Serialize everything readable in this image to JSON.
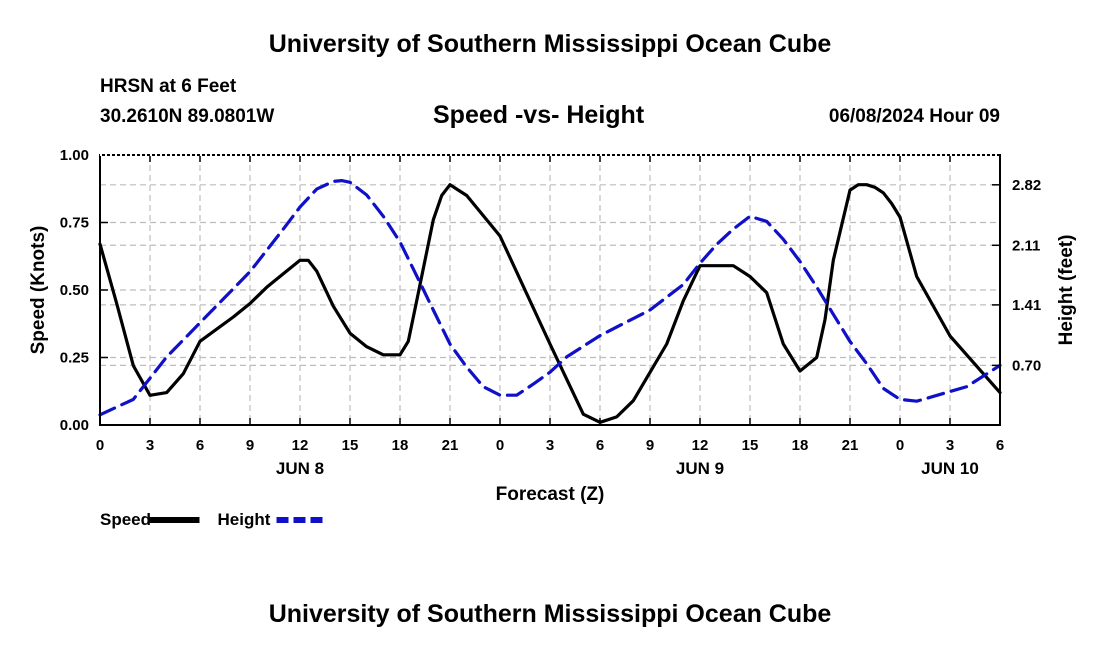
{
  "header": {
    "title": "University of Southern Mississippi Ocean Cube",
    "station": "HRSN at 6 Feet",
    "coords": "30.2610N  89.0801W",
    "chart_title": "Speed -vs- Height",
    "datetime": "06/08/2024 Hour 09"
  },
  "footer": {
    "title": "University of Southern Mississippi Ocean Cube"
  },
  "legend": [
    {
      "label": "Speed",
      "color": "#000000",
      "dash": "solid"
    },
    {
      "label": "Height",
      "color": "#1010c8",
      "dash": "dashed"
    }
  ],
  "chart_data": {
    "type": "line",
    "title": "Speed -vs- Height",
    "xlabel": "Forecast (Z)",
    "ylabel": "Speed (Knots)",
    "y2label": "Height (feet)",
    "x_range": [
      0,
      54
    ],
    "x_tick_labels": [
      "0",
      "3",
      "6",
      "9",
      "12",
      "15",
      "18",
      "21",
      "0",
      "3",
      "6",
      "9",
      "12",
      "15",
      "18",
      "21",
      "0",
      "3",
      "6"
    ],
    "day_labels": [
      {
        "label": "JUN 8",
        "x": 12
      },
      {
        "label": "JUN 9",
        "x": 36
      },
      {
        "label": "JUN 10",
        "x": 51
      }
    ],
    "y_range": [
      0,
      1.0
    ],
    "y_ticks": [
      "0.00",
      "0.25",
      "0.50",
      "0.75",
      "1.00"
    ],
    "y2_range": [
      0,
      3.17
    ],
    "y2_ticks": [
      "0.70",
      "1.41",
      "2.11",
      "2.82"
    ],
    "grid": true,
    "series": [
      {
        "name": "Speed",
        "axis": "left",
        "x": [
          0,
          1,
          2,
          3,
          4,
          5,
          6,
          8,
          9,
          10,
          11,
          12,
          12.5,
          13,
          14,
          15,
          16,
          17,
          18,
          18.5,
          19,
          20,
          20.5,
          21,
          21.5,
          22,
          24,
          27,
          29,
          30,
          31,
          32,
          34,
          35,
          36,
          38,
          39,
          40,
          41,
          42,
          43,
          43.5,
          44,
          45,
          45.5,
          46,
          46.5,
          47,
          47.5,
          48,
          49,
          51,
          53,
          54
        ],
        "y": [
          0.67,
          0.45,
          0.22,
          0.11,
          0.12,
          0.19,
          0.31,
          0.4,
          0.45,
          0.51,
          0.56,
          0.61,
          0.61,
          0.57,
          0.44,
          0.34,
          0.29,
          0.26,
          0.26,
          0.31,
          0.46,
          0.76,
          0.85,
          0.89,
          0.87,
          0.85,
          0.7,
          0.3,
          0.04,
          0.01,
          0.03,
          0.09,
          0.3,
          0.46,
          0.59,
          0.59,
          0.55,
          0.49,
          0.3,
          0.2,
          0.25,
          0.39,
          0.61,
          0.87,
          0.89,
          0.89,
          0.88,
          0.86,
          0.82,
          0.77,
          0.55,
          0.33,
          0.19,
          0.12
        ]
      },
      {
        "name": "Height",
        "axis": "right",
        "x": [
          0,
          2,
          3,
          4,
          6,
          9,
          11,
          12,
          13,
          14,
          14.5,
          15,
          16,
          17,
          18,
          19,
          20,
          21,
          22,
          23,
          24,
          25,
          26,
          27,
          28,
          30,
          33,
          35,
          36,
          37,
          38,
          39,
          40,
          41,
          42,
          43,
          44,
          45,
          46,
          47,
          48,
          49,
          52,
          54
        ],
        "y": [
          0.12,
          0.3,
          0.55,
          0.8,
          1.2,
          1.8,
          2.3,
          2.56,
          2.77,
          2.86,
          2.87,
          2.85,
          2.7,
          2.45,
          2.15,
          1.75,
          1.35,
          0.95,
          0.68,
          0.45,
          0.35,
          0.35,
          0.48,
          0.62,
          0.8,
          1.05,
          1.35,
          1.65,
          1.9,
          2.12,
          2.3,
          2.45,
          2.39,
          2.18,
          1.92,
          1.62,
          1.3,
          0.98,
          0.72,
          0.43,
          0.3,
          0.28,
          0.45,
          0.7
        ]
      }
    ]
  }
}
